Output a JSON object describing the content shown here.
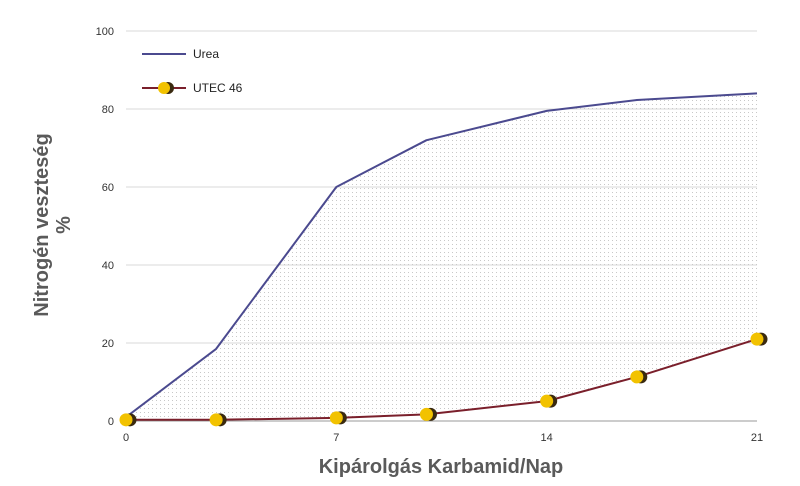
{
  "chart_data": {
    "type": "line",
    "title": "",
    "xlabel": "Kipárolgás Karbamid/Nap",
    "ylabel_line1": "Nitrogén veszteség",
    "ylabel_line2": "%",
    "xlim": [
      0,
      21
    ],
    "ylim": [
      0,
      100
    ],
    "x_ticks": [
      "0",
      "7",
      "14",
      "21"
    ],
    "y_ticks": [
      "0",
      "20",
      "40",
      "60",
      "80",
      "100"
    ],
    "grid": true,
    "legend_position": "top-left",
    "series": [
      {
        "name": "Urea",
        "color": "#4b4a8f",
        "marker": "none",
        "x": [
          0,
          3,
          7,
          10,
          14,
          17,
          21
        ],
        "y": [
          1,
          18.5,
          60,
          72,
          79.5,
          82.3,
          84
        ]
      },
      {
        "name": "UTEC 46",
        "color": "#7a1f2b",
        "marker": "circle",
        "marker_color": "#f2c200",
        "x": [
          0,
          3,
          7,
          10,
          14,
          17,
          21
        ],
        "y": [
          0.3,
          0.3,
          0.8,
          1.7,
          5.1,
          11.3,
          21
        ]
      }
    ]
  }
}
